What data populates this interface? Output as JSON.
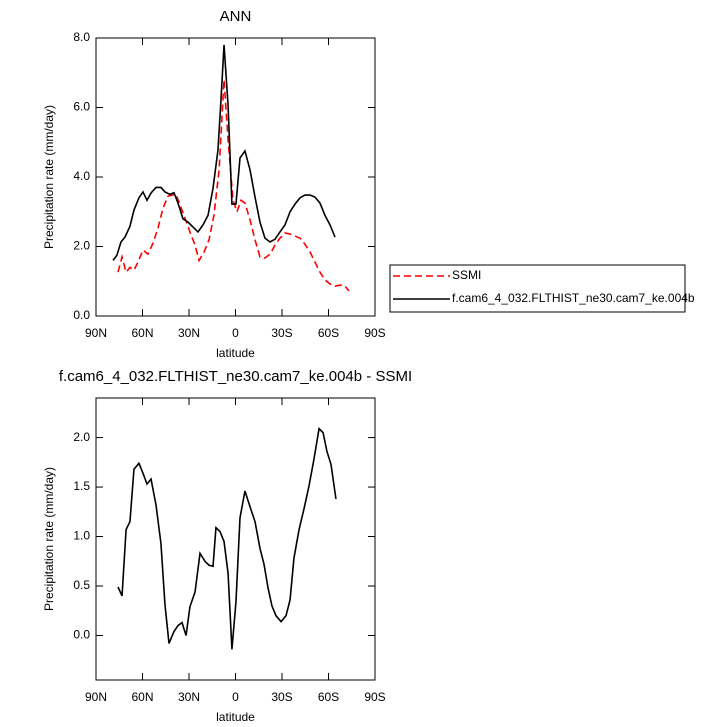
{
  "chart_data": [
    {
      "type": "line",
      "title": "ANN",
      "x_label": "latitude",
      "y_label": "Precipitation rate (mm/day)",
      "xlim": [
        90,
        -90
      ],
      "xticks": [
        {
          "value": 90,
          "label": "90N"
        },
        {
          "value": 60,
          "label": "60N"
        },
        {
          "value": 30,
          "label": "30N"
        },
        0,
        {
          "value": -30,
          "label": "30S"
        },
        {
          "value": -60,
          "label": "60S"
        },
        {
          "value": -90,
          "label": "90S"
        }
      ],
      "ylim": [
        0,
        8
      ],
      "yticks": [
        {
          "value": 0,
          "label": "0.0"
        },
        {
          "value": 2,
          "label": "2.0"
        },
        {
          "value": 4,
          "label": "4.0"
        },
        {
          "value": 6,
          "label": "6.0"
        },
        {
          "value": 8,
          "label": "8.0"
        }
      ],
      "legend": "right",
      "series": [
        {
          "name": "SSMI",
          "color": "#ff0000",
          "dash": "dashed",
          "x": [
            75.8,
            73.2,
            70.6,
            68,
            65.5,
            62.9,
            59.7,
            56.5,
            53.2,
            50,
            46.8,
            43.5,
            41,
            38.4,
            35.8,
            32.6,
            29.4,
            26.1,
            23.5,
            20.3,
            17.1,
            13.9,
            10.6,
            7.4,
            4.8,
            1.6,
            -1,
            -3.5,
            -6.1,
            -9.4,
            -12.6,
            -15.8,
            -19,
            -22.3,
            -25.5,
            -28.7,
            -31.9,
            -35.2,
            -38.4,
            -41.6,
            -44.8,
            -48.1,
            -51.3,
            -54.5,
            -57.7,
            -61,
            -64.2,
            -67.4,
            -70.6,
            -73.2
          ],
          "values": [
            1.26,
            1.7,
            1.26,
            1.4,
            1.32,
            1.55,
            1.9,
            1.78,
            2.1,
            2.53,
            3.1,
            3.45,
            3.48,
            3.5,
            3.2,
            2.82,
            2.42,
            2.04,
            1.6,
            1.84,
            2.19,
            2.9,
            4.2,
            6.8,
            5.08,
            3.33,
            3.0,
            3.33,
            3.25,
            2.76,
            2.19,
            1.7,
            1.67,
            1.78,
            2.04,
            2.24,
            2.39,
            2.36,
            2.3,
            2.24,
            2.07,
            1.84,
            1.55,
            1.26,
            1.04,
            0.92,
            0.86,
            0.89,
            0.86,
            0.72
          ]
        },
        {
          "name": "f.cam6_4_032.FLTHIST_ne30.cam7_ke.004b",
          "color": "#000000",
          "dash": "solid",
          "x": [
            79,
            76.5,
            73.9,
            71.3,
            68.1,
            65.5,
            62.3,
            59.7,
            57.1,
            54.5,
            51.3,
            48.1,
            45.5,
            42.3,
            39.7,
            37.1,
            33.9,
            30.6,
            27.4,
            24.2,
            21,
            17.7,
            14.5,
            11.3,
            9.4,
            7.4,
            4.8,
            2.3,
            -0.3,
            -2.9,
            -6.1,
            -9.4,
            -12.6,
            -15.8,
            -19,
            -22.3,
            -25.5,
            -28.7,
            -31.9,
            -35.2,
            -38.4,
            -41.6,
            -44.8,
            -48.1,
            -51.3,
            -54.5,
            -57.7,
            -61,
            -64.2
          ],
          "values": [
            1.6,
            1.75,
            2.13,
            2.27,
            2.58,
            3.05,
            3.4,
            3.57,
            3.33,
            3.54,
            3.7,
            3.7,
            3.57,
            3.5,
            3.55,
            3.25,
            2.8,
            2.7,
            2.56,
            2.42,
            2.62,
            2.9,
            3.68,
            4.78,
            6.2,
            7.8,
            6.07,
            3.22,
            3.22,
            4.55,
            4.75,
            4.2,
            3.42,
            2.7,
            2.24,
            2.13,
            2.21,
            2.42,
            2.62,
            3.0,
            3.22,
            3.4,
            3.48,
            3.48,
            3.42,
            3.25,
            2.9,
            2.62,
            2.27
          ]
        }
      ]
    },
    {
      "type": "line",
      "title": "f.cam6_4_032.FLTHIST_ne30.cam7_ke.004b - SSMI",
      "x_label": "latitude",
      "y_label": "Precipitation rate (mm/day)",
      "xlim": [
        90,
        -90
      ],
      "xticks": [
        {
          "value": 90,
          "label": "90N"
        },
        {
          "value": 60,
          "label": "60N"
        },
        {
          "value": 30,
          "label": "30N"
        },
        0,
        {
          "value": -30,
          "label": "30S"
        },
        {
          "value": -60,
          "label": "60S"
        },
        {
          "value": -90,
          "label": "90S"
        }
      ],
      "ylim": [
        -0.45,
        2.4
      ],
      "yticks": [
        {
          "value": 0,
          "label": "0.0"
        },
        0.5,
        {
          "value": 1,
          "label": "1.0"
        },
        1.5,
        {
          "value": 2,
          "label": "2.0"
        }
      ],
      "series": [
        {
          "color": "#000000",
          "dash": "solid",
          "x": [
            75.8,
            73.2,
            70.6,
            68.1,
            65.5,
            62.3,
            59.7,
            57.1,
            54.5,
            51.3,
            48.1,
            45.5,
            42.9,
            39.7,
            37.1,
            34.5,
            31.9,
            29.4,
            26.1,
            22.9,
            19.7,
            17.1,
            14.5,
            12.6,
            10,
            7.4,
            4.8,
            2.3,
            -0.3,
            -2.9,
            -6.1,
            -9.4,
            -12.6,
            -15.8,
            -18.4,
            -21,
            -23.5,
            -26.1,
            -29.4,
            -32.6,
            -35.2,
            -37.7,
            -41,
            -44.2,
            -47.4,
            -50.6,
            -53.9,
            -56.5,
            -59,
            -61.6,
            -64.8
          ],
          "values": [
            0.49,
            0.4,
            1.07,
            1.15,
            1.68,
            1.74,
            1.64,
            1.53,
            1.58,
            1.32,
            0.93,
            0.31,
            -0.08,
            0.04,
            0.1,
            0.13,
            0.0,
            0.29,
            0.44,
            0.83,
            0.75,
            0.71,
            0.7,
            1.09,
            1.05,
            0.95,
            0.63,
            -0.14,
            0.34,
            1.19,
            1.46,
            1.3,
            1.15,
            0.88,
            0.72,
            0.48,
            0.3,
            0.2,
            0.14,
            0.2,
            0.36,
            0.78,
            1.07,
            1.28,
            1.51,
            1.78,
            2.09,
            2.05,
            1.86,
            1.73,
            1.38
          ]
        }
      ]
    }
  ]
}
